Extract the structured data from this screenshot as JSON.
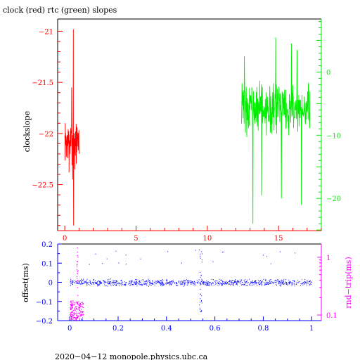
{
  "chart_data": [
    {
      "type": "line",
      "title": "clock (red) rtc (green) slopes",
      "xlabel": "",
      "ylabel": "clockslope",
      "xlim": [
        -0.5,
        18.0
      ],
      "ylim": [
        -22.95,
        -20.88
      ],
      "xticks": [
        0,
        5,
        10,
        15
      ],
      "yticks": [
        -21,
        -21.5,
        -22,
        -22.5
      ],
      "y2label": "",
      "y2lim": [
        -25.1,
        8.4
      ],
      "y2ticks": [
        0,
        -10,
        -20
      ],
      "colors": {
        "left": "#ff0000",
        "right": "#00ee00",
        "frame": "#000000"
      },
      "series": [
        {
          "axis": "left",
          "color": "#ff0000",
          "x_range": [
            0.0,
            1.0
          ],
          "center": -22.08,
          "spread": 0.13,
          "spikes": [
            [
              0.6,
              -20.98
            ],
            [
              0.62,
              -22.9
            ],
            [
              0.55,
              -22.45
            ],
            [
              0.48,
              -21.55
            ],
            [
              0.7,
              -22.35
            ],
            [
              0.3,
              -22.38
            ]
          ]
        },
        {
          "axis": "right",
          "color": "#00ee00",
          "x_range": [
            12.4,
            17.2
          ],
          "center": -5.8,
          "spread": 2.6,
          "spikes": [
            [
              12.6,
              2.5
            ],
            [
              14.8,
              5.5
            ],
            [
              15.9,
              4.5
            ],
            [
              16.3,
              3.5
            ],
            [
              13.2,
              -24.0
            ],
            [
              15.2,
              -20.0
            ],
            [
              16.6,
              -21.0
            ],
            [
              13.8,
              -19.5
            ]
          ]
        }
      ]
    },
    {
      "type": "scatter",
      "xlabel": "",
      "ylabel": "offset(ms)",
      "xlim": [
        -0.05,
        1.04
      ],
      "ylim": [
        -0.2,
        0.2
      ],
      "xticks": [
        0,
        0.2,
        0.4,
        0.6,
        0.8,
        1
      ],
      "xticklabels": [
        "0",
        "0.2",
        "0.4",
        "0.6",
        "0.8",
        "1"
      ],
      "yticks": [
        0.2,
        0.1,
        0,
        -0.1,
        -0.2
      ],
      "yticklabels": [
        "0.2",
        "0.1",
        "0",
        "−0.1",
        "−0.2"
      ],
      "y2label": "rnd−trip(ms)",
      "y2scale": "log",
      "y2lim": [
        0.08,
        1.7
      ],
      "y2ticks": [
        1,
        0.1
      ],
      "y2ticklabels": [
        "1",
        "0.1"
      ],
      "colors": {
        "offset": "#0000ff",
        "roundtrip": "#ff00ff"
      },
      "series": [
        {
          "name": "offset",
          "color": "#0000ff",
          "x_range": [
            0.0,
            1.0
          ],
          "center": 0.0,
          "spread": 0.012,
          "features": [
            {
              "x": 0.54,
              "dip_to": -0.16,
              "rise_to": 0.18
            }
          ]
        },
        {
          "name": "roundtrip",
          "color": "#ff00ff",
          "x_range": [
            0.0,
            0.055
          ],
          "center": 0.12,
          "spread": 0.02,
          "features": [
            {
              "x": 0.03,
              "rise_to": 1.7
            }
          ]
        }
      ]
    }
  ],
  "footer": "2020−04−12  monopole.physics.ubc.ca"
}
